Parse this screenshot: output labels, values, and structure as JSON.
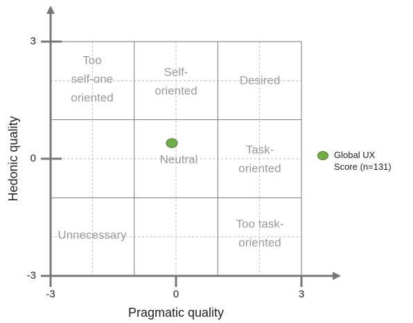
{
  "chart_data": {
    "type": "scatter",
    "x_label": "Pragmatic quality",
    "y_label": "Hedonic quality",
    "xlim": [
      -3,
      3
    ],
    "ylim": [
      -3,
      3
    ],
    "xticks": [
      -3,
      0,
      3
    ],
    "yticks": [
      -3,
      0,
      3
    ],
    "regions": [
      [
        "Too",
        "self-one",
        "oriented"
      ],
      [
        "Self-",
        "oriented"
      ],
      [
        "Desired"
      ],
      [
        "Task-",
        "oriented"
      ],
      [
        "Neutral"
      ],
      [
        "Unnecessary"
      ],
      [
        "Too task-",
        "oriented"
      ]
    ],
    "series": [
      {
        "name": "Global UX Score (n=131)",
        "color": "#70ad47",
        "x": [
          -0.1
        ],
        "values": [
          0.4
        ]
      }
    ]
  }
}
